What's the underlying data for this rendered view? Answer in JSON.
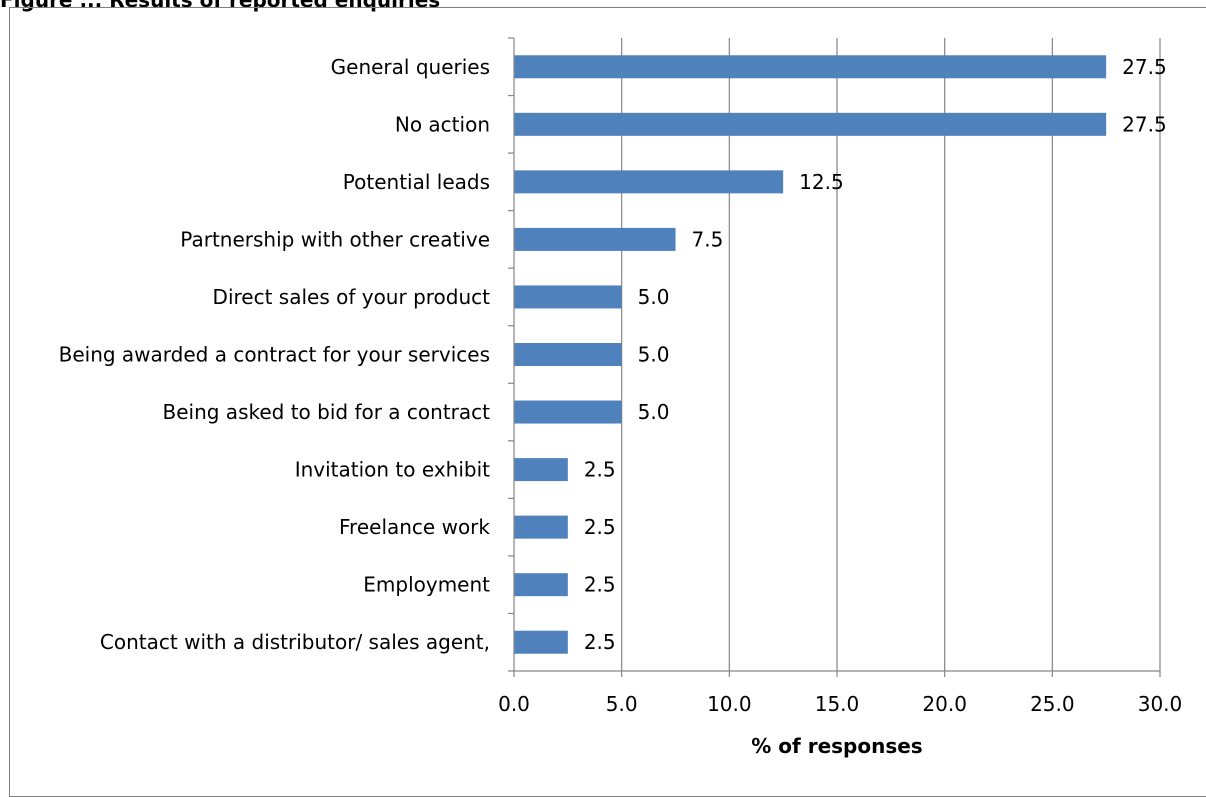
{
  "caption": "Figure ... Results of reported enquiries",
  "chart_data": {
    "type": "bar",
    "orientation": "horizontal",
    "categories": [
      "General queries",
      "No action",
      "Potential leads",
      "Partnership with other creative",
      "Direct sales of your product",
      "Being awarded a contract for your services",
      "Being asked to bid for a contract",
      "Invitation to exhibit ",
      "Freelance work",
      "Employment",
      "Contact with a distributor/ sales agent,"
    ],
    "values": [
      27.5,
      27.5,
      12.5,
      7.5,
      5.0,
      5.0,
      5.0,
      2.5,
      2.5,
      2.5,
      2.5
    ],
    "value_labels": [
      "27.5",
      "27.5",
      "12.5",
      "7.5",
      "5.0",
      "5.0",
      "5.0",
      "2.5",
      "2.5",
      "2.5",
      "2.5"
    ],
    "xlabel": "% of responses",
    "ylabel": "",
    "xlim": [
      0,
      30
    ],
    "x_ticks": [
      "0.0",
      "5.0",
      "10.0",
      "15.0",
      "20.0",
      "25.0",
      "30.0"
    ],
    "grid": "vertical major gridlines",
    "legend": "none",
    "bar_color": "#4f81bd",
    "gridline_color": "#868686"
  }
}
